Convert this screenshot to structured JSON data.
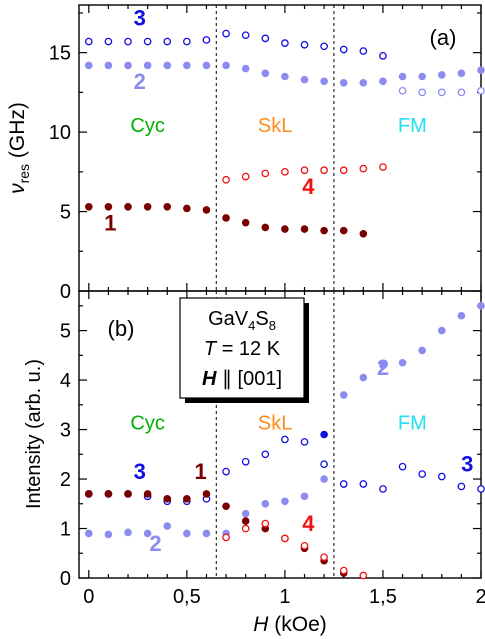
{
  "colors": {
    "mode1": "#7a0000",
    "mode2": "#8c8cf0",
    "mode3": "#1010e0",
    "mode4": "#ee1111",
    "cyc": "#00b000",
    "skl": "#ff8c1a",
    "fm": "#22e0f0",
    "axis": "#000000"
  },
  "chart_data": [
    {
      "type": "scatter",
      "panel_label": "(a)",
      "ylabel": "ν",
      "ylabel_sub": "res",
      "ylabel_unit": " (GHz)",
      "xlim": [
        -0.05,
        2.0
      ],
      "ylim": [
        0,
        18
      ],
      "yticks": [
        0,
        5,
        10,
        15
      ],
      "ytick_labels": [
        "0",
        "5",
        "10",
        "15"
      ],
      "phase_boundaries": [
        0.65,
        1.25
      ],
      "phase_labels": [
        {
          "text": "Cyc",
          "x": 0.3,
          "y": 10,
          "color_key": "cyc"
        },
        {
          "text": "SkL",
          "x": 0.95,
          "y": 10,
          "color_key": "skl"
        },
        {
          "text": "FM",
          "x": 1.65,
          "y": 10,
          "color_key": "fm"
        }
      ],
      "mode_labels": [
        {
          "text": "3",
          "x": 0.26,
          "y": 16.7,
          "color_key": "mode3"
        },
        {
          "text": "2",
          "x": 0.26,
          "y": 12.7,
          "color_key": "mode2"
        },
        {
          "text": "4",
          "x": 1.12,
          "y": 6.1,
          "color_key": "mode4"
        },
        {
          "text": "1",
          "x": 0.11,
          "y": 3.8,
          "color_key": "mode1"
        }
      ],
      "series": [
        {
          "mode": "3",
          "marker": "open",
          "color_key": "mode3",
          "x": [
            0,
            0.1,
            0.2,
            0.3,
            0.4,
            0.5,
            0.6,
            0.7,
            0.8,
            0.9,
            1.0,
            1.1,
            1.2,
            1.3,
            1.4,
            1.5
          ],
          "y": [
            15.7,
            15.7,
            15.7,
            15.7,
            15.7,
            15.7,
            15.8,
            16.2,
            16.1,
            15.9,
            15.6,
            15.5,
            15.4,
            15.2,
            15.1,
            14.8
          ]
        },
        {
          "mode": "2",
          "marker": "filled",
          "color_key": "mode2",
          "x": [
            0,
            0.1,
            0.2,
            0.3,
            0.4,
            0.5,
            0.6,
            0.7,
            0.8,
            0.9,
            1.0,
            1.1,
            1.2,
            1.3,
            1.4,
            1.5,
            1.6,
            1.7,
            1.8,
            1.9,
            2.0
          ],
          "y": [
            14.2,
            14.2,
            14.2,
            14.2,
            14.2,
            14.2,
            14.2,
            14.2,
            14.0,
            13.7,
            13.5,
            13.3,
            13.2,
            13.1,
            13.1,
            13.2,
            13.5,
            13.5,
            13.6,
            13.7,
            13.9
          ]
        },
        {
          "mode": "FM",
          "marker": "open",
          "color_key": "mode2",
          "x": [
            1.6,
            1.7,
            1.8,
            1.9,
            2.0
          ],
          "y": [
            12.6,
            12.5,
            12.5,
            12.5,
            12.6
          ]
        },
        {
          "mode": "4",
          "marker": "open",
          "color_key": "mode4",
          "x": [
            0.7,
            0.8,
            0.9,
            1.0,
            1.1,
            1.2,
            1.3,
            1.4,
            1.5
          ],
          "y": [
            7.0,
            7.2,
            7.4,
            7.5,
            7.6,
            7.6,
            7.6,
            7.7,
            7.8
          ]
        },
        {
          "mode": "1",
          "marker": "filled",
          "color_key": "mode1",
          "x": [
            0,
            0.1,
            0.2,
            0.3,
            0.4,
            0.5,
            0.6,
            0.7,
            0.8,
            0.9,
            1.0,
            1.1,
            1.2,
            1.3,
            1.4
          ],
          "y": [
            5.3,
            5.3,
            5.3,
            5.3,
            5.3,
            5.2,
            5.1,
            4.6,
            4.3,
            4.0,
            3.9,
            3.9,
            3.8,
            3.8,
            3.6
          ]
        }
      ]
    },
    {
      "type": "scatter",
      "panel_label": "(b)",
      "ylabel": "Intensity (arb. u.)",
      "xlabel": "H",
      "xlabel_unit": " (kOe)",
      "xlim": [
        -0.05,
        2.0
      ],
      "ylim": [
        0,
        5.8
      ],
      "yticks": [
        0,
        1,
        2,
        3,
        4,
        5
      ],
      "ytick_labels": [
        "0",
        "1",
        "2",
        "3",
        "4",
        "5"
      ],
      "xticks": [
        0,
        0.5,
        1,
        1.5,
        2
      ],
      "xtick_labels": [
        "0",
        "0,5",
        "1",
        "1,5",
        "2"
      ],
      "phase_boundaries": [
        0.65,
        1.25
      ],
      "legend_box": {
        "line1_main": "GaV",
        "line1_sub1": "4",
        "line1_mid": "S",
        "line1_sub2": "8",
        "line2_symbol": "T",
        "line2_rest": " = 12 K",
        "line3_symbol": "H",
        "line3_rest": " ∥ [001]"
      },
      "phase_labels": [
        {
          "text": "Cyc",
          "x": 0.3,
          "y": 3.0,
          "color_key": "cyc"
        },
        {
          "text": "SkL",
          "x": 0.95,
          "y": 3.0,
          "color_key": "skl"
        },
        {
          "text": "FM",
          "x": 1.65,
          "y": 3.0,
          "color_key": "fm"
        }
      ],
      "mode_labels": [
        {
          "text": "3",
          "x": 0.26,
          "y": 2.0,
          "color_key": "mode3"
        },
        {
          "text": "1",
          "x": 0.57,
          "y": 2.0,
          "color_key": "mode1"
        },
        {
          "text": "2",
          "x": 0.34,
          "y": 0.55,
          "color_key": "mode2"
        },
        {
          "text": "2",
          "x": 1.5,
          "y": 4.1,
          "color_key": "mode2"
        },
        {
          "text": "3",
          "x": 1.93,
          "y": 2.15,
          "color_key": "mode3"
        },
        {
          "text": "4",
          "x": 1.12,
          "y": 0.95,
          "color_key": "mode4"
        }
      ],
      "series": [
        {
          "mode": "2",
          "marker": "filled",
          "color_key": "mode2",
          "x": [
            0,
            0.1,
            0.2,
            0.3,
            0.4,
            0.5,
            0.6,
            0.7,
            0.8,
            0.9,
            1.0,
            1.1,
            1.2,
            1.3,
            1.4,
            1.5,
            1.6,
            1.7,
            1.8,
            1.9,
            2.0
          ],
          "y": [
            0.9,
            0.88,
            0.92,
            0.9,
            1.05,
            0.9,
            0.9,
            0.9,
            1.3,
            1.5,
            1.55,
            1.65,
            2.0,
            3.7,
            4.05,
            4.3,
            4.35,
            4.6,
            5.0,
            5.3,
            5.5
          ]
        },
        {
          "mode": "3",
          "marker": "open",
          "color_key": "mode3",
          "x": [
            0,
            0.1,
            0.2,
            0.3,
            0.4,
            0.5,
            0.6,
            0.7,
            0.8,
            0.9,
            1.0,
            1.1,
            1.2,
            1.3,
            1.4,
            1.5,
            1.6,
            1.7,
            1.8,
            1.9,
            2.0
          ],
          "y": [
            1.7,
            1.7,
            1.7,
            1.65,
            1.55,
            1.55,
            1.6,
            2.15,
            2.35,
            2.5,
            2.8,
            2.75,
            2.3,
            1.9,
            1.9,
            1.8,
            2.25,
            2.1,
            2.05,
            1.85,
            1.8
          ]
        },
        {
          "mode": "1",
          "marker": "filled",
          "color_key": "mode1",
          "x": [
            0,
            0.1,
            0.2,
            0.3,
            0.4,
            0.5,
            0.6,
            0.7,
            0.8,
            0.9,
            1.0,
            1.1,
            1.2,
            1.3
          ],
          "y": [
            1.7,
            1.7,
            1.7,
            1.7,
            1.6,
            1.6,
            1.7,
            1.45,
            1.15,
            1.0,
            0.8,
            0.6,
            0.35,
            0.1
          ]
        },
        {
          "mode": "4",
          "marker": "open",
          "color_key": "mode4",
          "x": [
            0.7,
            0.8,
            0.9,
            1.0,
            1.1,
            1.2,
            1.3,
            1.4
          ],
          "y": [
            0.82,
            1.0,
            1.1,
            0.8,
            0.65,
            0.42,
            0.15,
            0.05
          ]
        },
        {
          "mode": "3",
          "marker": "filled",
          "color_key": "mode3",
          "x": [
            1.2
          ],
          "y": [
            2.9
          ]
        }
      ]
    }
  ]
}
